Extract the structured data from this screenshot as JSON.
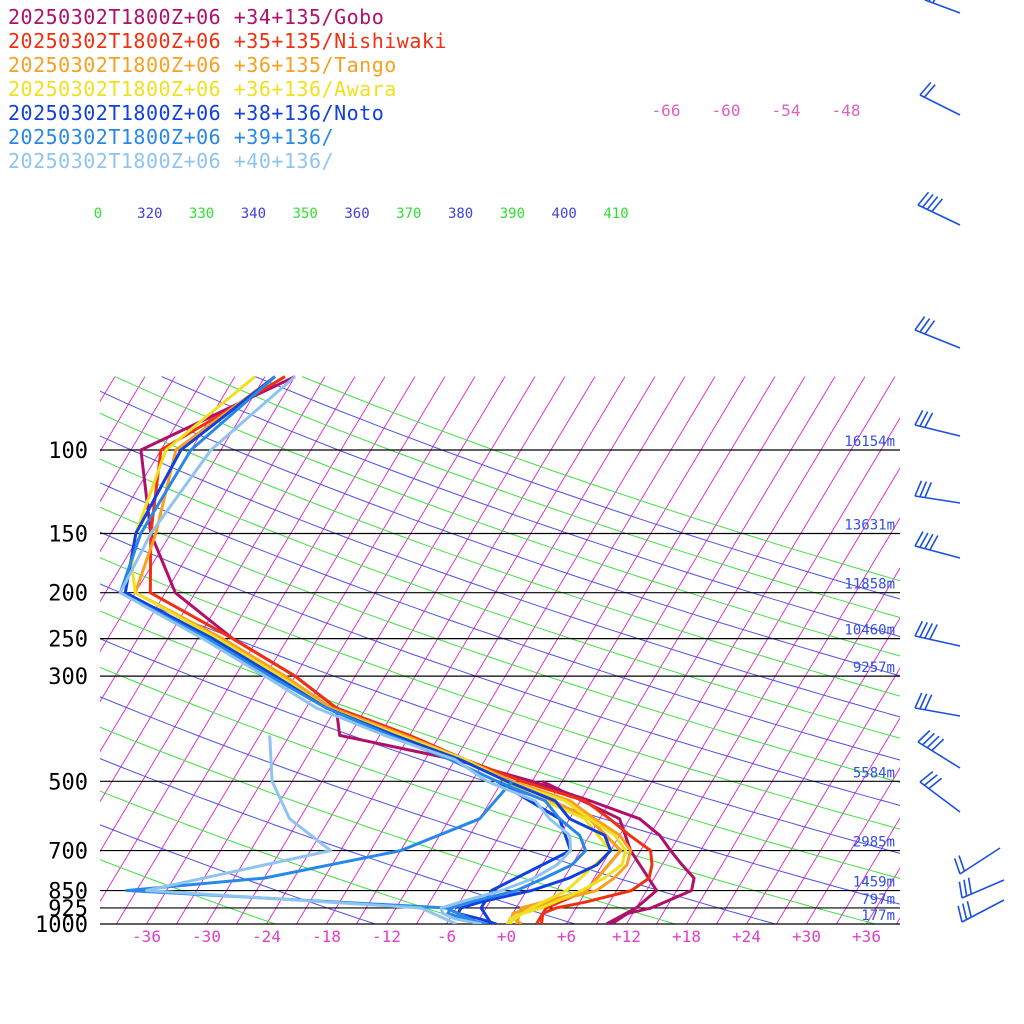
{
  "chart_data": {
    "type": "line",
    "chart_kind": "skew-T log-P sounding",
    "y_axis": {
      "scale": "log",
      "pressure_ticks_hPa": [
        100,
        150,
        200,
        250,
        300,
        500,
        700,
        850,
        925,
        1000
      ],
      "ylim": [
        1000,
        70
      ]
    },
    "x_axis": {
      "temperature_ticks": [
        "-36",
        "-30",
        "-24",
        "-18",
        "-12",
        "-6",
        "+0",
        "+6",
        "+12",
        "+18",
        "+24",
        "+30",
        "+36"
      ],
      "xlim": [
        -40,
        40
      ]
    },
    "height_labels": [
      {
        "p": 100,
        "label": "16154m"
      },
      {
        "p": 150,
        "label": "13631m"
      },
      {
        "p": 200,
        "label": "11858m"
      },
      {
        "p": 250,
        "label": "10460m"
      },
      {
        "p": 300,
        "label": "9257m"
      },
      {
        "p": 500,
        "label": "5584m"
      },
      {
        "p": 700,
        "label": "2985m"
      },
      {
        "p": 850,
        "label": "1459m"
      },
      {
        "p": 925,
        "label": "797m"
      },
      {
        "p": 1000,
        "label": "177m"
      }
    ],
    "theta_labels": [
      {
        "text": "0",
        "color": "#30e030"
      },
      {
        "text": "320",
        "color": "#4040e0"
      },
      {
        "text": "330",
        "color": "#30e030"
      },
      {
        "text": "340",
        "color": "#4040e0"
      },
      {
        "text": "350",
        "color": "#30e030"
      },
      {
        "text": "360",
        "color": "#4040e0"
      },
      {
        "text": "370",
        "color": "#30e030"
      },
      {
        "text": "380",
        "color": "#4040e0"
      },
      {
        "text": "390",
        "color": "#30e030"
      },
      {
        "text": "400",
        "color": "#4040e0"
      },
      {
        "text": "410",
        "color": "#30e030"
      }
    ],
    "upper_temp_labels": [
      "-66",
      "-60",
      "-54",
      "-48"
    ],
    "series": [
      {
        "name": "20250302T1800Z+06 +34+135/Gobo",
        "color": "#b0106a",
        "temperature": [
          [
            1000,
            10.5
          ],
          [
            975,
            11.0
          ],
          [
            950,
            11.5
          ],
          [
            925,
            13.5
          ],
          [
            900,
            14.5
          ],
          [
            850,
            16.5
          ],
          [
            800,
            16.0
          ],
          [
            750,
            14.0
          ],
          [
            700,
            12.0
          ],
          [
            650,
            10.0
          ],
          [
            600,
            7.0
          ],
          [
            550,
            1.0
          ],
          [
            500,
            -6.0
          ],
          [
            450,
            -15.0
          ],
          [
            400,
            -28.0
          ],
          [
            350,
            -30.0
          ],
          [
            300,
            -36.0
          ],
          [
            250,
            -44.5
          ],
          [
            200,
            -53.0
          ],
          [
            150,
            -59.0
          ],
          [
            100,
            -65.0
          ],
          [
            70,
            -54.0
          ]
        ],
        "dewpoint": [
          [
            1000,
            10.0
          ],
          [
            925,
            12.0
          ],
          [
            850,
            13.0
          ],
          [
            700,
            8.0
          ],
          [
            600,
            5.0
          ],
          [
            500,
            -5.0
          ]
        ]
      },
      {
        "name": "20250302T1800Z+06 +35+135/Nishiwaki",
        "color": "#f03010",
        "temperature": [
          [
            1000,
            3.5
          ],
          [
            950,
            3.0
          ],
          [
            925,
            4.0
          ],
          [
            900,
            6.5
          ],
          [
            850,
            10.5
          ],
          [
            800,
            11.5
          ],
          [
            750,
            11.0
          ],
          [
            700,
            10.0
          ],
          [
            650,
            7.0
          ],
          [
            600,
            4.0
          ],
          [
            550,
            0.5
          ],
          [
            500,
            -7.0
          ],
          [
            450,
            -14.0
          ],
          [
            400,
            -21.0
          ],
          [
            350,
            -30.0
          ],
          [
            300,
            -36.0
          ],
          [
            250,
            -44.5
          ],
          [
            200,
            -55.5
          ],
          [
            150,
            -59.0
          ],
          [
            100,
            -63.0
          ],
          [
            70,
            -55.0
          ]
        ],
        "dewpoint": [
          [
            1000,
            3.0
          ],
          [
            925,
            3.0
          ],
          [
            850,
            6.0
          ],
          [
            700,
            7.0
          ],
          [
            600,
            2.0
          ],
          [
            500,
            -8.0
          ]
        ]
      },
      {
        "name": "20250302T1800Z+06 +36+135/Tango",
        "color": "#f8a020",
        "temperature": [
          [
            1000,
            1.5
          ],
          [
            975,
            0.5
          ],
          [
            950,
            0.0
          ],
          [
            925,
            1.5
          ],
          [
            900,
            3.0
          ],
          [
            850,
            7.0
          ],
          [
            800,
            8.0
          ],
          [
            750,
            8.5
          ],
          [
            700,
            8.0
          ],
          [
            650,
            6.0
          ],
          [
            600,
            2.5
          ],
          [
            550,
            -1.0
          ],
          [
            500,
            -8.0
          ],
          [
            450,
            -14.0
          ],
          [
            400,
            -21.5
          ],
          [
            350,
            -30.5
          ],
          [
            300,
            -37.0
          ],
          [
            250,
            -45.5
          ],
          [
            200,
            -57.0
          ],
          [
            150,
            -58.5
          ],
          [
            100,
            -61.5
          ],
          [
            70,
            -56.0
          ]
        ],
        "dewpoint": [
          [
            1000,
            1.0
          ],
          [
            925,
            0.5
          ],
          [
            850,
            6.0
          ],
          [
            700,
            7.0
          ],
          [
            600,
            2.0
          ],
          [
            500,
            -8.0
          ]
        ]
      },
      {
        "name": "20250302T1800Z+06 +36+136/Awara",
        "color": "#f0e020",
        "temperature": [
          [
            1000,
            0.5
          ],
          [
            975,
            0.0
          ],
          [
            950,
            1.0
          ],
          [
            925,
            2.5
          ],
          [
            900,
            3.5
          ],
          [
            850,
            5.5
          ],
          [
            800,
            7.0
          ],
          [
            750,
            8.0
          ],
          [
            700,
            7.5
          ],
          [
            650,
            5.5
          ],
          [
            600,
            2.0
          ],
          [
            550,
            -1.5
          ],
          [
            500,
            -8.5
          ],
          [
            450,
            -14.0
          ],
          [
            400,
            -22.0
          ],
          [
            350,
            -31.0
          ],
          [
            300,
            -37.5
          ],
          [
            250,
            -46.0
          ],
          [
            200,
            -57.0
          ],
          [
            175,
            -59.0
          ],
          [
            150,
            -60.5
          ],
          [
            100,
            -62.5
          ],
          [
            70,
            -58.0
          ]
        ],
        "dewpoint": [
          [
            1000,
            0.0
          ],
          [
            925,
            1.5
          ],
          [
            850,
            4.0
          ],
          [
            700,
            6.0
          ],
          [
            600,
            1.5
          ],
          [
            500,
            -9.0
          ]
        ]
      },
      {
        "name": "20250302T1800Z+06 +38+136/Noto",
        "color": "#1040e0",
        "temperature": [
          [
            1000,
            -1.0
          ],
          [
            975,
            -3.0
          ],
          [
            950,
            -5.5
          ],
          [
            925,
            -5.5
          ],
          [
            900,
            -4.0
          ],
          [
            850,
            0.5
          ],
          [
            800,
            3.5
          ],
          [
            750,
            5.5
          ],
          [
            700,
            6.0
          ],
          [
            650,
            4.5
          ],
          [
            600,
            0.0
          ],
          [
            550,
            -2.5
          ],
          [
            500,
            -8.5
          ],
          [
            450,
            -14.5
          ],
          [
            400,
            -22.5
          ],
          [
            350,
            -31.0
          ],
          [
            300,
            -38.0
          ],
          [
            250,
            -46.5
          ],
          [
            200,
            -58.0
          ],
          [
            150,
            -60.5
          ],
          [
            100,
            -61.0
          ],
          [
            70,
            -56.0
          ]
        ],
        "dewpoint": [
          [
            1000,
            -1.5
          ],
          [
            925,
            -3.5
          ],
          [
            850,
            -3.5
          ],
          [
            700,
            2.0
          ],
          [
            600,
            -1.0
          ],
          [
            500,
            -9.5
          ]
        ]
      },
      {
        "name": "20250302T1800Z+06 +39+136/",
        "color": "#2888e8",
        "temperature": [
          [
            1000,
            -2.0
          ],
          [
            975,
            -4.5
          ],
          [
            950,
            -6.5
          ],
          [
            925,
            -6.5
          ],
          [
            900,
            -5.0
          ],
          [
            850,
            -1.0
          ],
          [
            800,
            1.0
          ],
          [
            750,
            3.0
          ],
          [
            700,
            3.5
          ],
          [
            650,
            2.0
          ],
          [
            600,
            -1.0
          ],
          [
            550,
            -3.5
          ],
          [
            500,
            -9.5
          ],
          [
            450,
            -15.5
          ],
          [
            400,
            -23.0
          ],
          [
            350,
            -31.0
          ],
          [
            300,
            -38.5
          ],
          [
            250,
            -47.0
          ],
          [
            200,
            -58.5
          ],
          [
            150,
            -60.0
          ],
          [
            100,
            -60.0
          ],
          [
            70,
            -56.0
          ]
        ],
        "dewpoint": [
          [
            1000,
            -2.5
          ],
          [
            925,
            -7.0
          ],
          [
            850,
            -40.0
          ],
          [
            800,
            -27.0
          ],
          [
            700,
            -15.0
          ],
          [
            600,
            -9.0
          ],
          [
            500,
            -8.0
          ]
        ]
      },
      {
        "name": "20250302T1800Z+06 +40+136/",
        "color": "#90c4f0",
        "temperature": [
          [
            1000,
            -2.5
          ],
          [
            975,
            -5.5
          ],
          [
            950,
            -7.0
          ],
          [
            925,
            -7.5
          ],
          [
            900,
            -6.0
          ],
          [
            850,
            -2.5
          ],
          [
            800,
            0.0
          ],
          [
            750,
            1.5
          ],
          [
            700,
            2.0
          ],
          [
            650,
            1.0
          ],
          [
            600,
            -2.0
          ],
          [
            550,
            -4.5
          ],
          [
            500,
            -10.5
          ],
          [
            450,
            -15.0
          ],
          [
            400,
            -23.5
          ],
          [
            350,
            -32.0
          ],
          [
            300,
            -39.0
          ],
          [
            250,
            -47.5
          ],
          [
            200,
            -58.5
          ],
          [
            150,
            -59.0
          ],
          [
            100,
            -58.0
          ],
          [
            70,
            -54.0
          ]
        ],
        "dewpoint": [
          [
            1000,
            -5.0
          ],
          [
            925,
            -9.5
          ],
          [
            850,
            -38.0
          ],
          [
            700,
            -22.0
          ],
          [
            600,
            -28.0
          ],
          [
            500,
            -32.0
          ],
          [
            400,
            -35.0
          ]
        ]
      }
    ],
    "grid": true,
    "legend_placement": "top-left"
  }
}
